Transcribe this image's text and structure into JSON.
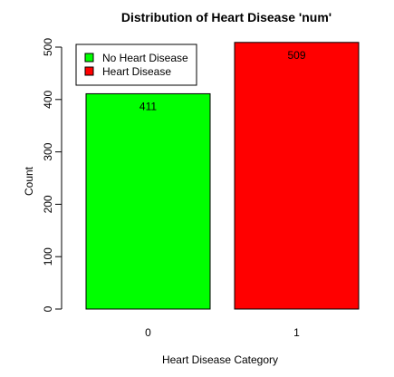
{
  "chart_data": {
    "type": "bar",
    "title": "Distribution of Heart Disease 'num'",
    "xlabel": "Heart Disease Category",
    "ylabel": "Count",
    "categories": [
      "0",
      "1"
    ],
    "values": [
      411,
      509
    ],
    "data_labels": [
      "411",
      "509"
    ],
    "colors": [
      "#00ff00",
      "#ff0000"
    ],
    "ylim": [
      0,
      520
    ],
    "yticks": [
      0,
      100,
      200,
      300,
      400,
      500
    ],
    "ytick_labels": [
      "0",
      "100",
      "200",
      "300",
      "400",
      "500"
    ],
    "grid": false,
    "legend": {
      "placement": "top-left",
      "entries": [
        {
          "label": "No Heart Disease",
          "color": "#00ff00"
        },
        {
          "label": "Heart Disease",
          "color": "#ff0000"
        }
      ]
    }
  }
}
